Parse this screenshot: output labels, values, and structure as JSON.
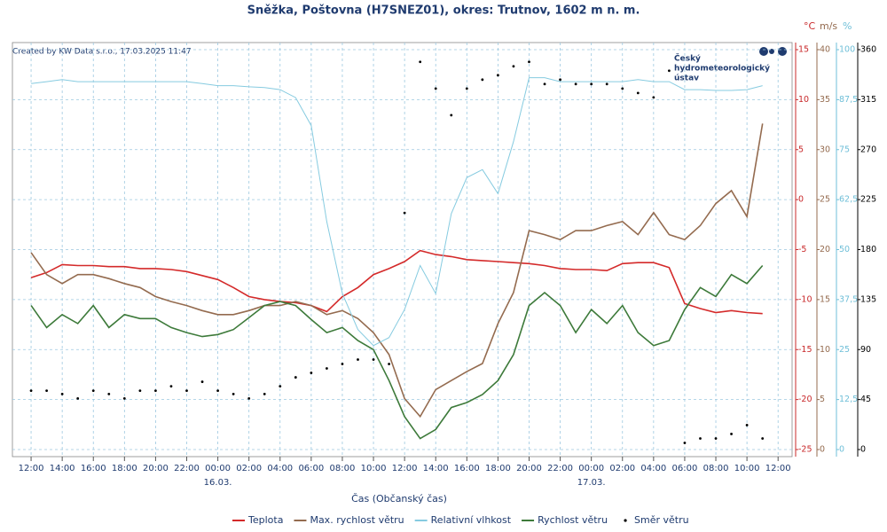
{
  "chart_data": {
    "type": "line",
    "title": "Sněžka, Poštovna (H7SNEZ01), okres: Trutnov, 1602 m n. m.",
    "credit": "Created by KW Data s.r.o., 17.03.2025 11:47",
    "logo": {
      "lines": [
        "Český",
        "hydrometeorologický",
        "ústav"
      ]
    },
    "xlabel": "Čas (Občanský čas)",
    "ylabel": "°C",
    "y2label": "m/s",
    "y3label": "%",
    "grid": true,
    "xlim": [
      10.8,
      60.9
    ],
    "xticks": [
      {
        "value": 12,
        "label": "12:00"
      },
      {
        "value": 14,
        "label": "14:00"
      },
      {
        "value": 16,
        "label": "16:00"
      },
      {
        "value": 18,
        "label": "18:00"
      },
      {
        "value": 20,
        "label": "20:00"
      },
      {
        "value": 22,
        "label": "22:00"
      },
      {
        "value": 24,
        "label": "00:00"
      },
      {
        "value": 26,
        "label": "02:00"
      },
      {
        "value": 28,
        "label": "04:00"
      },
      {
        "value": 30,
        "label": "06:00"
      },
      {
        "value": 32,
        "label": "08:00"
      },
      {
        "value": 34,
        "label": "10:00"
      },
      {
        "value": 36,
        "label": "12:00"
      },
      {
        "value": 38,
        "label": "14:00"
      },
      {
        "value": 40,
        "label": "16:00"
      },
      {
        "value": 42,
        "label": "18:00"
      },
      {
        "value": 44,
        "label": "20:00"
      },
      {
        "value": 46,
        "label": "22:00"
      },
      {
        "value": 48,
        "label": "00:00"
      },
      {
        "value": 50,
        "label": "02:00"
      },
      {
        "value": 52,
        "label": "04:00"
      },
      {
        "value": 54,
        "label": "06:00"
      },
      {
        "value": 56,
        "label": "08:00"
      },
      {
        "value": 58,
        "label": "10:00"
      },
      {
        "value": 60,
        "label": "12:00"
      }
    ],
    "date_labels": [
      {
        "value": 24,
        "label": "16.03."
      },
      {
        "value": 48,
        "label": "17.03."
      }
    ],
    "ylim": [
      -25,
      15
    ],
    "yticks": [
      15,
      10,
      5,
      0,
      -5,
      -10,
      -15,
      -20,
      -25
    ],
    "ycolor": "#c8282a",
    "y2lim": [
      0,
      40
    ],
    "y2ticks": [
      40,
      35,
      30,
      25,
      20,
      15,
      10,
      5,
      0
    ],
    "y2color": "#946b4f",
    "y3lim": [
      0,
      100
    ],
    "y3ticks": [
      100,
      {
        "value": 87.5,
        "label": "87,5"
      },
      75,
      {
        "value": 62.5,
        "label": "62,5"
      },
      50,
      {
        "value": 37.5,
        "label": "37,5"
      },
      25,
      {
        "value": 12.5,
        "label": "12,5"
      },
      0
    ],
    "y3color": "#6fbfd8",
    "y4lim": [
      0,
      360
    ],
    "y4ticks": [
      360,
      315,
      270,
      225,
      180,
      135,
      90,
      45,
      0
    ],
    "y4color": "#000000",
    "x": [
      12,
      13,
      14,
      15,
      16,
      17,
      18,
      19,
      20,
      21,
      22,
      23,
      24,
      25,
      26,
      27,
      28,
      29,
      30,
      31,
      32,
      33,
      34,
      35,
      36,
      37,
      38,
      39,
      40,
      41,
      42,
      43,
      44,
      45,
      46,
      47,
      48,
      49,
      50,
      51,
      52,
      53,
      54,
      55,
      56,
      57,
      58,
      59
    ],
    "series": [
      {
        "name": "Teplota",
        "color": "#d42a2a",
        "axis": "y",
        "values": [
          -7.8,
          -7.3,
          -6.5,
          -6.6,
          -6.6,
          -6.7,
          -6.7,
          -6.9,
          -6.9,
          -7.0,
          -7.2,
          -7.6,
          -8.0,
          -8.8,
          -9.7,
          -10.0,
          -10.2,
          -10.3,
          -10.6,
          -11.2,
          -9.7,
          -8.8,
          -7.5,
          -6.9,
          -6.2,
          -5.1,
          -5.5,
          -5.7,
          -6.0,
          -6.1,
          -6.2,
          -6.3,
          -6.4,
          -6.6,
          -6.9,
          -7.0,
          -7.0,
          -7.1,
          -6.4,
          -6.3,
          -6.3,
          -6.8,
          -10.4,
          -10.9,
          -11.3,
          -11.1,
          -11.3,
          -11.4
        ]
      },
      {
        "name": "Max. rychlost větru",
        "color": "#946b4f",
        "axis": "y2",
        "values": [
          19.7,
          17.5,
          16.6,
          17.5,
          17.5,
          17.1,
          16.6,
          16.2,
          15.3,
          14.8,
          14.4,
          13.9,
          13.5,
          13.5,
          13.9,
          14.4,
          14.4,
          14.8,
          14.4,
          13.5,
          13.9,
          13.1,
          11.7,
          9.5,
          5.1,
          3.3,
          6.0,
          6.9,
          7.8,
          8.6,
          12.6,
          15.7,
          21.9,
          21.5,
          21.0,
          21.9,
          21.9,
          22.4,
          22.8,
          21.5,
          23.7,
          21.5,
          21.0,
          22.4,
          24.6,
          25.9,
          23.3,
          32.6
        ]
      },
      {
        "name": "Relativní vlhkost",
        "color": "#86cbe0",
        "axis": "y3",
        "values": [
          91.5,
          92,
          92.5,
          92,
          92,
          92,
          92,
          92,
          92,
          92,
          92,
          91.5,
          91,
          91,
          90.7,
          90.5,
          90,
          88,
          81,
          57,
          39,
          30,
          26,
          28,
          35,
          46,
          39,
          59,
          68,
          70,
          64,
          77,
          93,
          93,
          92,
          92,
          92,
          92,
          92,
          92.5,
          92,
          92,
          90,
          90,
          89.8,
          89.8,
          90,
          91
        ]
      },
      {
        "name": "Rychlost větru",
        "color": "#3d7a3a",
        "axis": "y2",
        "values": [
          14.4,
          12.2,
          13.5,
          12.6,
          14.4,
          12.2,
          13.5,
          13.1,
          13.1,
          12.2,
          11.7,
          11.3,
          11.5,
          12.0,
          13.2,
          14.4,
          14.8,
          14.4,
          13.0,
          11.7,
          12.2,
          10.9,
          10.0,
          6.9,
          3.3,
          1.1,
          2.0,
          4.2,
          4.7,
          5.5,
          6.9,
          9.5,
          14.4,
          15.7,
          14.4,
          11.7,
          14.0,
          12.6,
          14.4,
          11.7,
          10.4,
          10.9,
          14.0,
          16.2,
          15.3,
          17.5,
          16.6,
          18.4
        ]
      },
      {
        "name": "Směr větru",
        "color": "#000000",
        "axis": "y4",
        "type": "scatter",
        "values": [
          53,
          53,
          50,
          46,
          53,
          50,
          46,
          53,
          53,
          57,
          53,
          61,
          53,
          50,
          46,
          50,
          57,
          65,
          69,
          73,
          77,
          81,
          81,
          77,
          213,
          349,
          325,
          301,
          325,
          333,
          337,
          345,
          349,
          329,
          333,
          329,
          329,
          329,
          325,
          321,
          317,
          341,
          6,
          10,
          10,
          14,
          22,
          10
        ]
      }
    ]
  }
}
